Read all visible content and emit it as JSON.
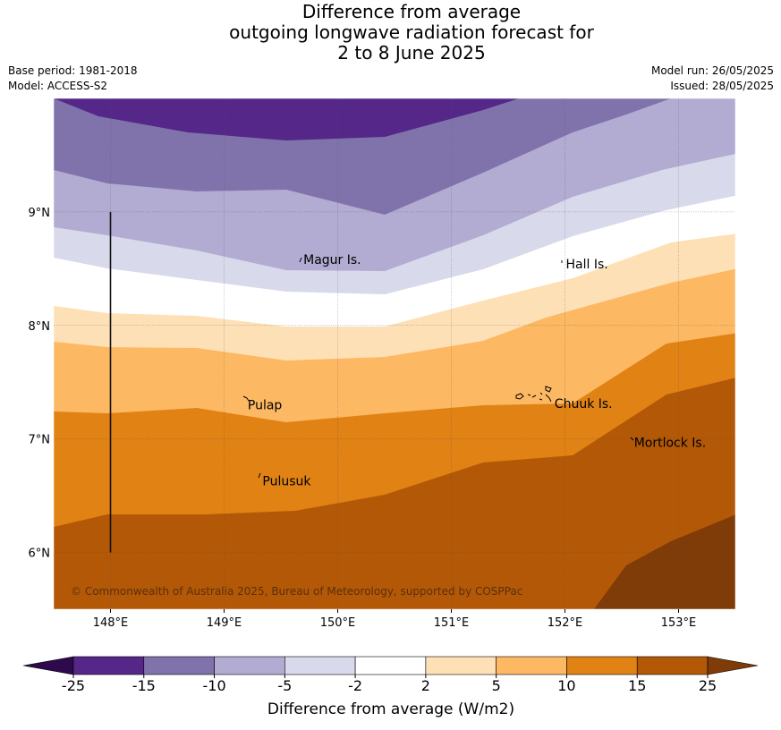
{
  "title": {
    "line1": "Difference from average",
    "line2": "outgoing longwave radiation forecast for",
    "line3": "2 to 8 June 2025"
  },
  "meta": {
    "base_period": "Base period: 1981-2018",
    "model": "Model: ACCESS-S2",
    "model_run": "Model run: 26/05/2025",
    "issued": "Issued: 28/05/2025"
  },
  "map": {
    "lon_range": [
      147.5,
      153.5
    ],
    "lat_range": [
      5.5,
      10.0
    ],
    "lon_ticks": [
      {
        "value": 148,
        "label": "148°E"
      },
      {
        "value": 149,
        "label": "149°E"
      },
      {
        "value": 150,
        "label": "150°E"
      },
      {
        "value": 151,
        "label": "151°E"
      },
      {
        "value": 152,
        "label": "152°E"
      },
      {
        "value": 153,
        "label": "153°E"
      }
    ],
    "lat_ticks": [
      {
        "value": 9,
        "label": "9°N"
      },
      {
        "value": 8,
        "label": "8°N"
      },
      {
        "value": 7,
        "label": "7°N"
      },
      {
        "value": 6,
        "label": "6°N"
      }
    ],
    "boundary_line": {
      "lon": 148.0,
      "lat_from": 6.0,
      "lat_to": 9.0
    },
    "places": [
      {
        "name": "Magur Is.",
        "lon": 149.69,
        "lat": 8.55
      },
      {
        "name": "Hall Is.",
        "lon": 152.0,
        "lat": 8.51
      },
      {
        "name": "Pulap",
        "lon": 149.2,
        "lat": 7.27
      },
      {
        "name": "Chuuk Is.",
        "lon": 151.9,
        "lat": 7.28
      },
      {
        "name": "Mortlock Is.",
        "lon": 152.6,
        "lat": 6.94
      },
      {
        "name": "Pulusuk",
        "lon": 149.33,
        "lat": 6.6
      }
    ],
    "credit": "© Commonwealth of Australia 2025, Bureau of Meteorology, supported by COSPPac"
  },
  "contours": {
    "band_colors": [
      "#2e0a4c",
      "#552788",
      "#8073ac",
      "#b2abd2",
      "#d8daeb",
      "#ffffff",
      "#fee0b6",
      "#fdb863",
      "#e08214",
      "#b35806",
      "#7f3b08"
    ],
    "levels": [
      -25,
      -15,
      -10,
      -5,
      -2,
      2,
      5,
      10,
      15,
      25
    ]
  },
  "colorbar": {
    "title": "Difference from average (W/m2)",
    "labels": [
      "-25",
      "-15",
      "-10",
      "-5",
      "-2",
      "2",
      "5",
      "10",
      "15",
      "25"
    ]
  }
}
